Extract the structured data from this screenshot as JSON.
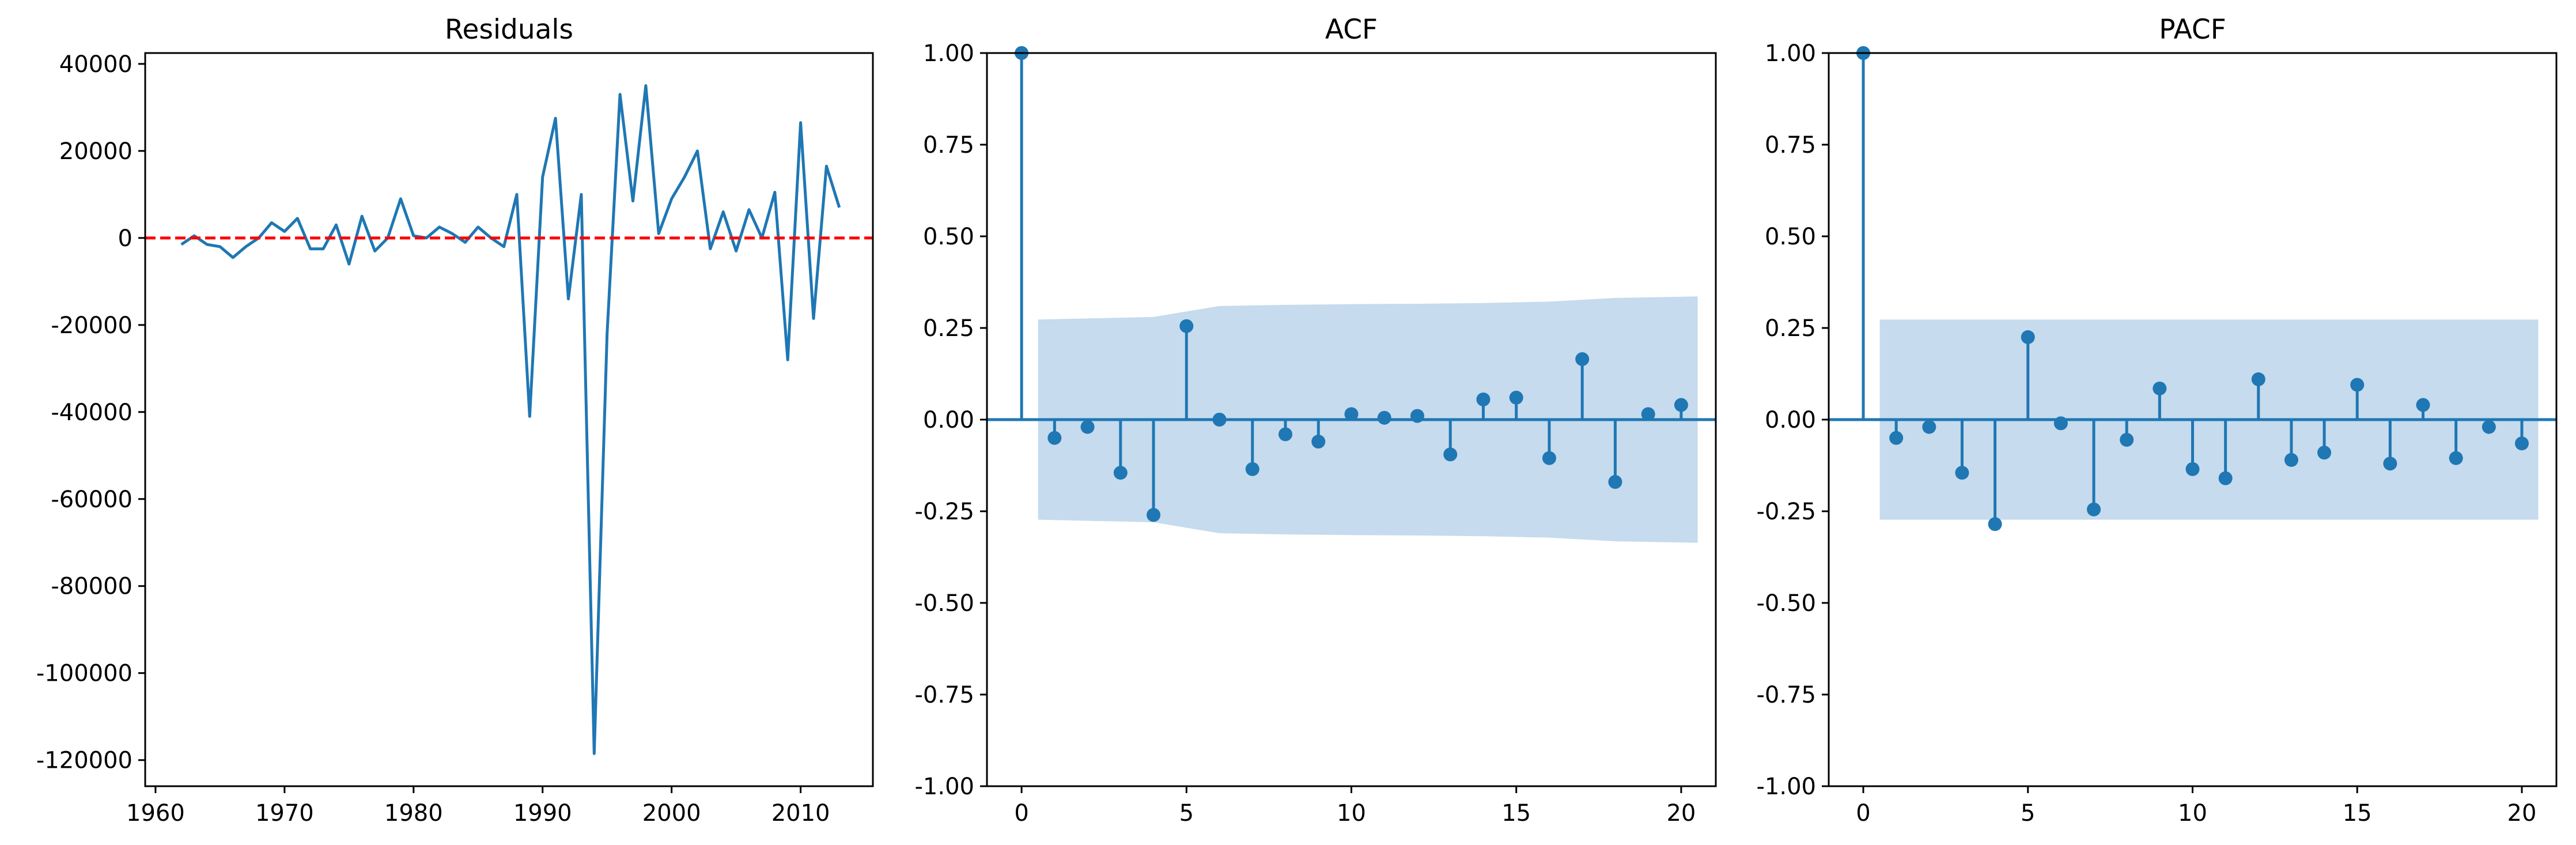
{
  "chart_data": [
    {
      "type": "line",
      "title": "Residuals",
      "xlabel": "",
      "ylabel": "",
      "xlim": [
        1959.2,
        2015.6
      ],
      "ylim": [
        -126000,
        42500
      ],
      "x_ticks": [
        1960,
        1970,
        1980,
        1990,
        2000,
        2010
      ],
      "y_ticks": [
        40000,
        20000,
        0,
        -20000,
        -40000,
        -60000,
        -80000,
        -100000,
        -120000
      ],
      "x": [
        1962,
        1963,
        1964,
        1965,
        1966,
        1967,
        1968,
        1969,
        1970,
        1971,
        1972,
        1973,
        1974,
        1975,
        1976,
        1977,
        1978,
        1979,
        1980,
        1981,
        1982,
        1983,
        1984,
        1985,
        1986,
        1987,
        1988,
        1989,
        1990,
        1991,
        1992,
        1993,
        1994,
        1995,
        1996,
        1997,
        1998,
        1999,
        2000,
        2001,
        2002,
        2003,
        2004,
        2005,
        2006,
        2007,
        2008,
        2009,
        2010,
        2011,
        2012,
        2013
      ],
      "series": [
        {
          "values": [
            -1500,
            500,
            -1500,
            -2000,
            -4500,
            -2000,
            0,
            3500,
            1500,
            4500,
            -2500,
            -2500,
            3000,
            -6000,
            5000,
            -3000,
            0,
            9000,
            500,
            0,
            2500,
            1000,
            -1000,
            2500,
            0,
            -2000,
            10000,
            -41000,
            14000,
            27500,
            -14000,
            10000,
            -118500,
            -22000,
            33000,
            8500,
            35000,
            1000,
            9000,
            14000,
            20000,
            -2500,
            6000,
            -3000,
            6500,
            0,
            10500,
            -28000,
            26500,
            -18500,
            16500,
            7000
          ],
          "color": "#1f77b4"
        }
      ],
      "reference_line": {
        "y": 0,
        "color": "#ff0000",
        "style": "dashed"
      }
    },
    {
      "type": "stem",
      "title": "ACF",
      "xlabel": "",
      "ylabel": "",
      "xlim": [
        -1.05,
        21.05
      ],
      "ylim": [
        -1.0,
        1.0
      ],
      "x_ticks": [
        0,
        5,
        10,
        15,
        20
      ],
      "y_ticks": [
        "1.00",
        "0.75",
        "0.50",
        "0.25",
        "0.00",
        "-0.25",
        "-0.50",
        "-0.75",
        "-1.00"
      ],
      "lags": [
        0,
        1,
        2,
        3,
        4,
        5,
        6,
        7,
        8,
        9,
        10,
        11,
        12,
        13,
        14,
        15,
        16,
        17,
        18,
        19,
        20
      ],
      "values": [
        1.0,
        -0.05,
        -0.02,
        -0.145,
        -0.26,
        0.255,
        0.0,
        -0.135,
        -0.04,
        -0.06,
        0.015,
        0.005,
        0.01,
        -0.095,
        0.055,
        0.06,
        -0.105,
        0.165,
        -0.17,
        0.015,
        0.04
      ],
      "confidence_band": {
        "x": [
          0.5,
          4,
          6,
          8,
          10,
          12,
          14,
          16,
          18,
          20.5
        ],
        "upper": [
          0.273,
          0.28,
          0.31,
          0.313,
          0.315,
          0.316,
          0.318,
          0.322,
          0.332,
          0.336
        ]
      },
      "color": "#1f77b4",
      "band_color": "#c6dbed"
    },
    {
      "type": "stem",
      "title": "PACF",
      "xlabel": "",
      "ylabel": "",
      "xlim": [
        -1.05,
        21.05
      ],
      "ylim": [
        -1.0,
        1.0
      ],
      "x_ticks": [
        0,
        5,
        10,
        15,
        20
      ],
      "y_ticks": [
        "1.00",
        "0.75",
        "0.50",
        "0.25",
        "0.00",
        "-0.25",
        "-0.50",
        "-0.75",
        "-1.00"
      ],
      "lags": [
        0,
        1,
        2,
        3,
        4,
        5,
        6,
        7,
        8,
        9,
        10,
        11,
        12,
        13,
        14,
        15,
        16,
        17,
        18,
        19,
        20
      ],
      "values": [
        1.0,
        -0.05,
        -0.02,
        -0.145,
        -0.285,
        0.225,
        -0.01,
        -0.245,
        -0.055,
        0.085,
        -0.135,
        -0.16,
        0.11,
        -0.11,
        -0.09,
        0.095,
        -0.12,
        0.04,
        -0.105,
        -0.02,
        -0.065
      ],
      "confidence_band": {
        "x": [
          0.5,
          20.5
        ],
        "upper": [
          0.273,
          0.273
        ]
      },
      "color": "#1f77b4",
      "band_color": "#c6dbed"
    }
  ]
}
